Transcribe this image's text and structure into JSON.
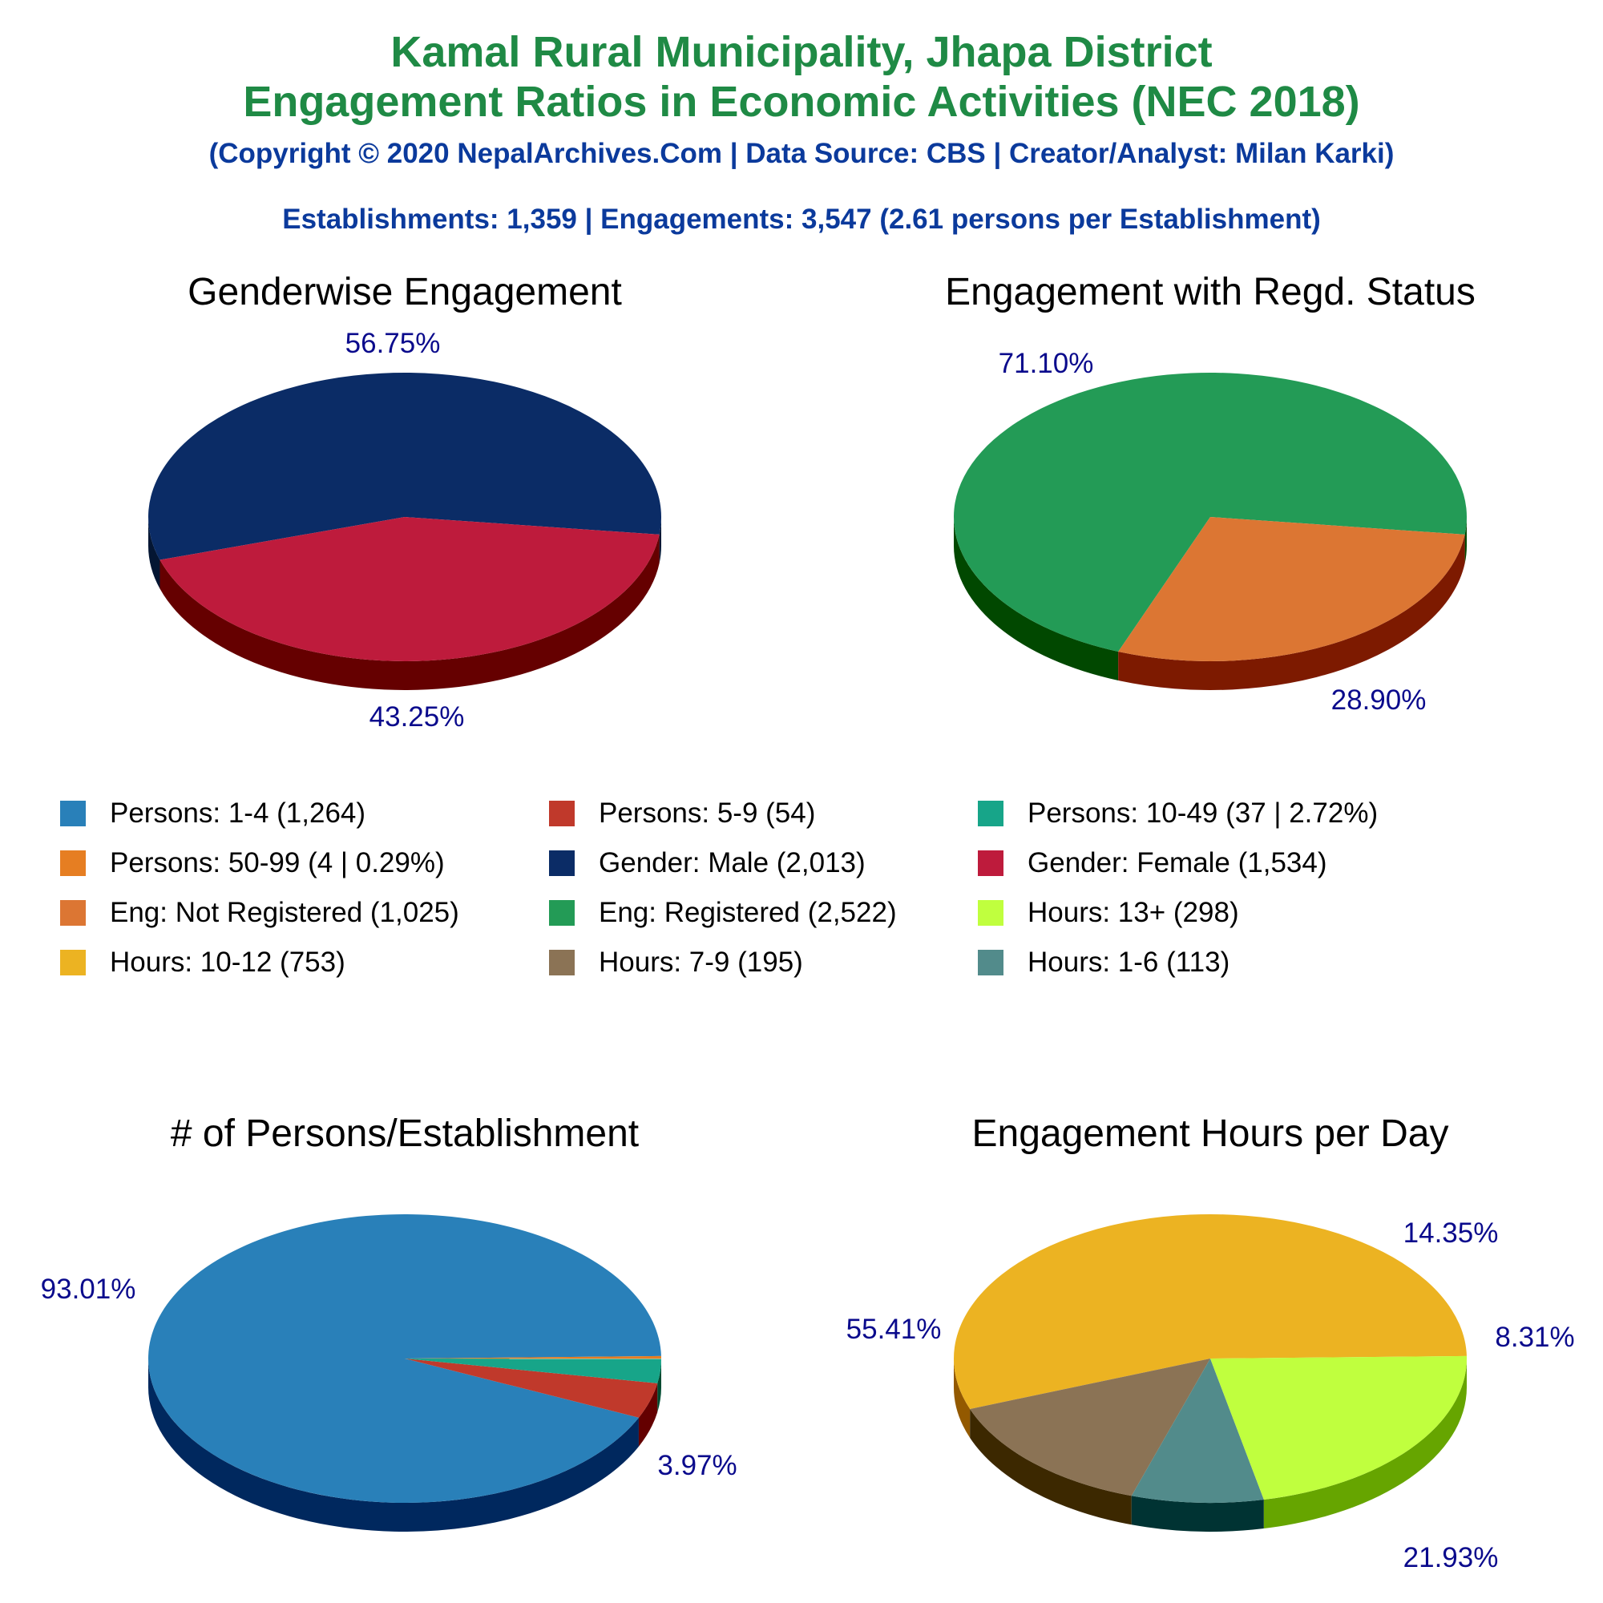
{
  "header": {
    "title_line1": "Kamal Rural Municipality, Jhapa District",
    "title_line2": "Engagement Ratios in Economic Activities (NEC 2018)",
    "copyright": "(Copyright © 2020 NepalArchives.Com | Data Source: CBS | Creator/Analyst: Milan Karki)",
    "summary": "Establishments: 1,359 | Engagements: 3,547 (2.61 persons per Establishment)"
  },
  "chart_data": [
    {
      "type": "pie",
      "title": "Genderwise Engagement",
      "slices": [
        {
          "label": "Gender: Male",
          "value": 2013,
          "percent_label": "56.75%",
          "color": "#0b2c66",
          "side": "#041633"
        },
        {
          "label": "Gender: Female",
          "value": 1534,
          "percent_label": "43.25%",
          "color": "#be1b3c",
          "side": "#650000"
        }
      ]
    },
    {
      "type": "pie",
      "title": "Engagement with Regd. Status",
      "slices": [
        {
          "label": "Eng: Registered",
          "value": 2522,
          "percent_label": "71.10%",
          "color": "#239b56",
          "side": "#014800"
        },
        {
          "label": "Eng: Not Registered",
          "value": 1025,
          "percent_label": "28.90%",
          "color": "#dc7633",
          "side": "#7d1a00"
        }
      ]
    },
    {
      "type": "pie",
      "title": "# of Persons/Establishment",
      "slices": [
        {
          "label": "Persons: 1-4",
          "value": 1264,
          "percent_label": "93.01%",
          "color": "#2980b9",
          "side": "#00285e"
        },
        {
          "label": "Persons: 5-9",
          "value": 54,
          "percent_label": "3.97%",
          "color": "#c0392b",
          "side": "#640000"
        },
        {
          "label": "Persons: 10-49",
          "value": 37,
          "percent_label": "",
          "color": "#17a589",
          "side": "#004b31"
        },
        {
          "label": "Persons: 50-99",
          "value": 4,
          "percent_label": "",
          "color": "#e67e22",
          "side": "#8a2400"
        }
      ]
    },
    {
      "type": "pie",
      "title": "Engagement Hours per Day",
      "slices": [
        {
          "label": "Hours: 10-12",
          "value": 753,
          "percent_label": "55.41%",
          "color": "#ecb322",
          "side": "#935900"
        },
        {
          "label": "Hours: 7-9",
          "value": 195,
          "percent_label": "14.35%",
          "color": "#8b7355",
          "side": "#3c2800"
        },
        {
          "label": "Hours: 1-6",
          "value": 113,
          "percent_label": "8.31%",
          "color": "#528b8b",
          "side": "#003333"
        },
        {
          "label": "Hours: 13+",
          "value": 298,
          "percent_label": "21.93%",
          "color": "#c0ff3e",
          "side": "#66a500"
        }
      ]
    }
  ],
  "legend": [
    {
      "text": "Persons: 1-4 (1,264)",
      "color": "#2980b9"
    },
    {
      "text": "Persons: 5-9 (54)",
      "color": "#c0392b"
    },
    {
      "text": "Persons: 10-49 (37 | 2.72%)",
      "color": "#17a589"
    },
    {
      "text": "Persons: 50-99 (4 | 0.29%)",
      "color": "#e67e22"
    },
    {
      "text": "Gender: Male (2,013)",
      "color": "#0b2c66"
    },
    {
      "text": "Gender: Female (1,534)",
      "color": "#be1b3c"
    },
    {
      "text": "Eng: Not Registered (1,025)",
      "color": "#dc7633"
    },
    {
      "text": "Eng: Registered (2,522)",
      "color": "#239b56"
    },
    {
      "text": "Hours: 13+ (298)",
      "color": "#c0ff3e"
    },
    {
      "text": "Hours: 10-12 (753)",
      "color": "#ecb322"
    },
    {
      "text": "Hours: 7-9 (195)",
      "color": "#8b7355"
    },
    {
      "text": "Hours: 1-6 (113)",
      "color": "#528b8b"
    }
  ]
}
